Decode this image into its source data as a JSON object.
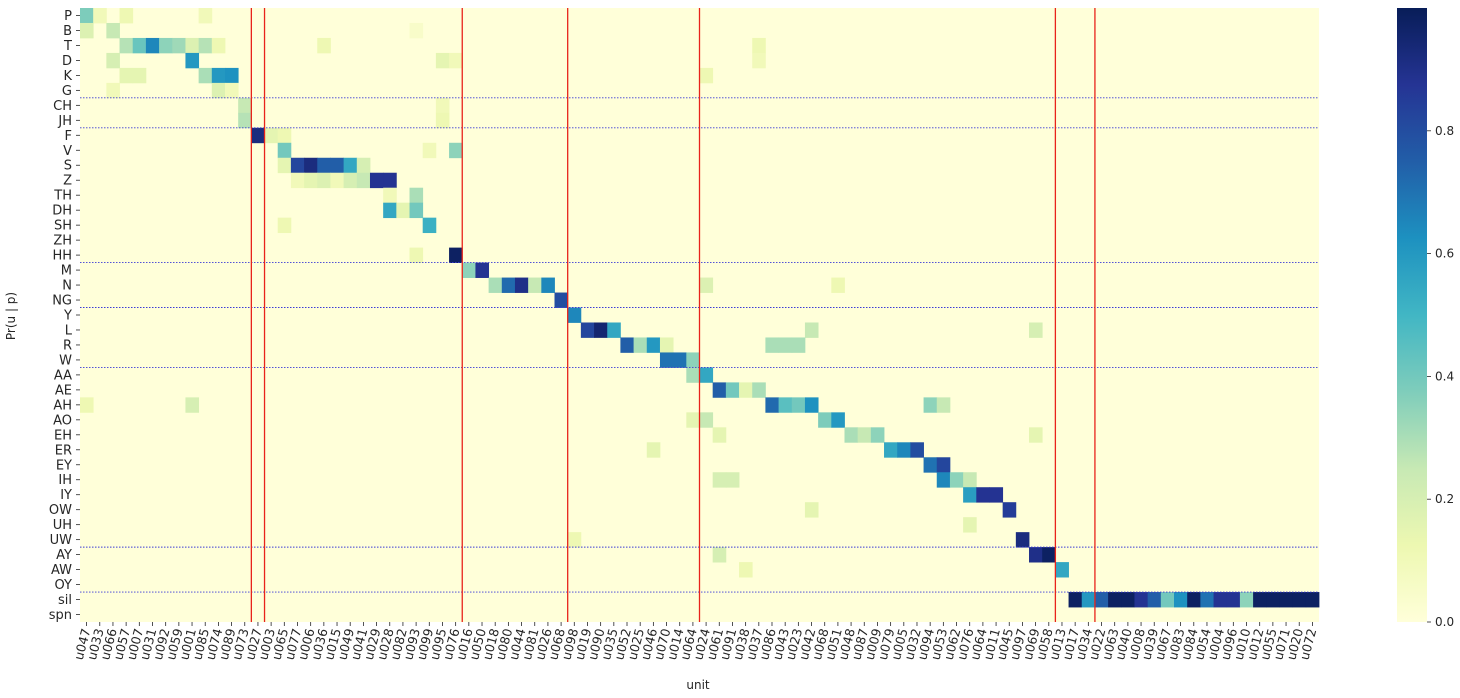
{
  "chart_data": {
    "type": "heatmap",
    "ylabel": "Pr(u | p)",
    "xlabel": "unit",
    "rows": [
      "P",
      "B",
      "T",
      "D",
      "K",
      "G",
      "CH",
      "JH",
      "F",
      "V",
      "S",
      "Z",
      "TH",
      "DH",
      "SH",
      "ZH",
      "HH",
      "M",
      "N",
      "NG",
      "Y",
      "L",
      "R",
      "W",
      "AA",
      "AE",
      "AH",
      "AO",
      "EH",
      "ER",
      "EY",
      "IH",
      "IY",
      "OW",
      "UH",
      "UW",
      "AY",
      "AW",
      "OY",
      "sil",
      "spn"
    ],
    "columns": [
      "u047",
      "u033",
      "u066",
      "u057",
      "u007",
      "u031",
      "u092",
      "u059",
      "u001",
      "u085",
      "u074",
      "u089",
      "u073",
      "u027",
      "u003",
      "u065",
      "u077",
      "u006",
      "u036",
      "u015",
      "u049",
      "u041",
      "u029",
      "u028",
      "u082",
      "u093",
      "u099",
      "u095",
      "u076",
      "u016",
      "u050",
      "u018",
      "u080",
      "u044",
      "u081",
      "u026",
      "u068",
      "u098",
      "u019",
      "u090",
      "u035",
      "u052",
      "u025",
      "u046",
      "u070",
      "u014",
      "u064",
      "u024",
      "u061",
      "u091",
      "u038",
      "u037",
      "u086",
      "u043",
      "u023",
      "u042",
      "u068",
      "u051",
      "u048",
      "u087",
      "u009",
      "u079",
      "u005",
      "u032",
      "u094",
      "u053",
      "u062",
      "u076",
      "u064",
      "u011",
      "u045",
      "u097",
      "u069",
      "u058",
      "u013",
      "u017",
      "u034",
      "u022",
      "u063",
      "u040",
      "u008",
      "u039",
      "u067",
      "u083",
      "u084",
      "u054",
      "u004",
      "u096",
      "u010",
      "u012",
      "u055",
      "u071",
      "u020",
      "u072"
    ],
    "clim": [
      0.0,
      1.0
    ],
    "colorbar_ticks": [
      "0.0",
      "0.2",
      "0.4",
      "0.6",
      "0.8"
    ],
    "colormap": "YlGnBu",
    "group_boundaries_red_after_column": [
      12,
      13,
      28,
      36,
      46,
      73,
      76
    ],
    "group_boundaries_blue_after_row": [
      5,
      7,
      16,
      19,
      23,
      35,
      38
    ],
    "cells": [
      {
        "r": 0,
        "c": 0,
        "v": 0.38
      },
      {
        "r": 0,
        "c": 1,
        "v": 0.1
      },
      {
        "r": 0,
        "c": 3,
        "v": 0.12
      },
      {
        "r": 0,
        "c": 9,
        "v": 0.1
      },
      {
        "r": 1,
        "c": 0,
        "v": 0.18
      },
      {
        "r": 1,
        "c": 2,
        "v": 0.25
      },
      {
        "r": 1,
        "c": 25,
        "v": 0.05
      },
      {
        "r": 2,
        "c": 3,
        "v": 0.28
      },
      {
        "r": 2,
        "c": 4,
        "v": 0.42
      },
      {
        "r": 2,
        "c": 5,
        "v": 0.65
      },
      {
        "r": 2,
        "c": 6,
        "v": 0.35
      },
      {
        "r": 2,
        "c": 7,
        "v": 0.32
      },
      {
        "r": 2,
        "c": 8,
        "v": 0.18
      },
      {
        "r": 2,
        "c": 9,
        "v": 0.28
      },
      {
        "r": 2,
        "c": 10,
        "v": 0.12
      },
      {
        "r": 2,
        "c": 18,
        "v": 0.12
      },
      {
        "r": 2,
        "c": 51,
        "v": 0.12
      },
      {
        "r": 3,
        "c": 2,
        "v": 0.2
      },
      {
        "r": 3,
        "c": 8,
        "v": 0.6
      },
      {
        "r": 3,
        "c": 27,
        "v": 0.15
      },
      {
        "r": 3,
        "c": 28,
        "v": 0.1
      },
      {
        "r": 3,
        "c": 51,
        "v": 0.1
      },
      {
        "r": 4,
        "c": 3,
        "v": 0.15
      },
      {
        "r": 4,
        "c": 4,
        "v": 0.15
      },
      {
        "r": 4,
        "c": 9,
        "v": 0.3
      },
      {
        "r": 4,
        "c": 10,
        "v": 0.6
      },
      {
        "r": 4,
        "c": 11,
        "v": 0.62
      },
      {
        "r": 4,
        "c": 47,
        "v": 0.12
      },
      {
        "r": 5,
        "c": 2,
        "v": 0.1
      },
      {
        "r": 5,
        "c": 10,
        "v": 0.18
      },
      {
        "r": 5,
        "c": 11,
        "v": 0.1
      },
      {
        "r": 6,
        "c": 12,
        "v": 0.25
      },
      {
        "r": 6,
        "c": 27,
        "v": 0.1
      },
      {
        "r": 7,
        "c": 12,
        "v": 0.28
      },
      {
        "r": 7,
        "c": 27,
        "v": 0.12
      },
      {
        "r": 8,
        "c": 13,
        "v": 0.92
      },
      {
        "r": 8,
        "c": 14,
        "v": 0.15
      },
      {
        "r": 8,
        "c": 15,
        "v": 0.12
      },
      {
        "r": 9,
        "c": 15,
        "v": 0.4
      },
      {
        "r": 9,
        "c": 28,
        "v": 0.35
      },
      {
        "r": 9,
        "c": 26,
        "v": 0.1
      },
      {
        "r": 10,
        "c": 15,
        "v": 0.15
      },
      {
        "r": 10,
        "c": 16,
        "v": 0.82
      },
      {
        "r": 10,
        "c": 17,
        "v": 0.92
      },
      {
        "r": 10,
        "c": 18,
        "v": 0.75
      },
      {
        "r": 10,
        "c": 19,
        "v": 0.75
      },
      {
        "r": 10,
        "c": 20,
        "v": 0.55
      },
      {
        "r": 10,
        "c": 21,
        "v": 0.2
      },
      {
        "r": 11,
        "c": 16,
        "v": 0.1
      },
      {
        "r": 11,
        "c": 17,
        "v": 0.15
      },
      {
        "r": 11,
        "c": 18,
        "v": 0.18
      },
      {
        "r": 11,
        "c": 19,
        "v": 0.1
      },
      {
        "r": 11,
        "c": 20,
        "v": 0.2
      },
      {
        "r": 11,
        "c": 21,
        "v": 0.25
      },
      {
        "r": 11,
        "c": 22,
        "v": 0.88
      },
      {
        "r": 11,
        "c": 23,
        "v": 0.88
      },
      {
        "r": 12,
        "c": 25,
        "v": 0.3
      },
      {
        "r": 12,
        "c": 23,
        "v": 0.1
      },
      {
        "r": 13,
        "c": 23,
        "v": 0.55
      },
      {
        "r": 13,
        "c": 24,
        "v": 0.15
      },
      {
        "r": 13,
        "c": 25,
        "v": 0.4
      },
      {
        "r": 14,
        "c": 26,
        "v": 0.52
      },
      {
        "r": 14,
        "c": 15,
        "v": 0.12
      },
      {
        "r": 16,
        "c": 28,
        "v": 0.98
      },
      {
        "r": 16,
        "c": 25,
        "v": 0.12
      },
      {
        "r": 17,
        "c": 29,
        "v": 0.35
      },
      {
        "r": 17,
        "c": 30,
        "v": 0.88
      },
      {
        "r": 18,
        "c": 31,
        "v": 0.3
      },
      {
        "r": 18,
        "c": 32,
        "v": 0.72
      },
      {
        "r": 18,
        "c": 33,
        "v": 0.9
      },
      {
        "r": 18,
        "c": 34,
        "v": 0.25
      },
      {
        "r": 18,
        "c": 35,
        "v": 0.65
      },
      {
        "r": 18,
        "c": 47,
        "v": 0.18
      },
      {
        "r": 18,
        "c": 57,
        "v": 0.12
      },
      {
        "r": 19,
        "c": 36,
        "v": 0.8
      },
      {
        "r": 20,
        "c": 37,
        "v": 0.65
      },
      {
        "r": 21,
        "c": 38,
        "v": 0.82
      },
      {
        "r": 21,
        "c": 39,
        "v": 0.95
      },
      {
        "r": 21,
        "c": 40,
        "v": 0.55
      },
      {
        "r": 21,
        "c": 55,
        "v": 0.25
      },
      {
        "r": 21,
        "c": 72,
        "v": 0.2
      },
      {
        "r": 22,
        "c": 41,
        "v": 0.75
      },
      {
        "r": 22,
        "c": 42,
        "v": 0.3
      },
      {
        "r": 22,
        "c": 43,
        "v": 0.6
      },
      {
        "r": 22,
        "c": 44,
        "v": 0.15
      },
      {
        "r": 22,
        "c": 52,
        "v": 0.3
      },
      {
        "r": 22,
        "c": 53,
        "v": 0.3
      },
      {
        "r": 22,
        "c": 54,
        "v": 0.3
      },
      {
        "r": 23,
        "c": 44,
        "v": 0.7
      },
      {
        "r": 23,
        "c": 45,
        "v": 0.7
      },
      {
        "r": 23,
        "c": 46,
        "v": 0.35
      },
      {
        "r": 24,
        "c": 46,
        "v": 0.3
      },
      {
        "r": 24,
        "c": 47,
        "v": 0.55
      },
      {
        "r": 25,
        "c": 48,
        "v": 0.75
      },
      {
        "r": 25,
        "c": 49,
        "v": 0.4
      },
      {
        "r": 25,
        "c": 50,
        "v": 0.15
      },
      {
        "r": 25,
        "c": 51,
        "v": 0.3
      },
      {
        "r": 26,
        "c": 52,
        "v": 0.72
      },
      {
        "r": 26,
        "c": 53,
        "v": 0.45
      },
      {
        "r": 26,
        "c": 54,
        "v": 0.4
      },
      {
        "r": 26,
        "c": 55,
        "v": 0.62
      },
      {
        "r": 26,
        "c": 64,
        "v": 0.35
      },
      {
        "r": 26,
        "c": 65,
        "v": 0.25
      },
      {
        "r": 26,
        "c": 0,
        "v": 0.12
      },
      {
        "r": 26,
        "c": 8,
        "v": 0.2
      },
      {
        "r": 27,
        "c": 46,
        "v": 0.15
      },
      {
        "r": 27,
        "c": 47,
        "v": 0.25
      },
      {
        "r": 27,
        "c": 56,
        "v": 0.38
      },
      {
        "r": 27,
        "c": 57,
        "v": 0.6
      },
      {
        "r": 28,
        "c": 48,
        "v": 0.15
      },
      {
        "r": 28,
        "c": 58,
        "v": 0.3
      },
      {
        "r": 28,
        "c": 59,
        "v": 0.25
      },
      {
        "r": 28,
        "c": 60,
        "v": 0.35
      },
      {
        "r": 28,
        "c": 72,
        "v": 0.15
      },
      {
        "r": 29,
        "c": 61,
        "v": 0.55
      },
      {
        "r": 29,
        "c": 62,
        "v": 0.65
      },
      {
        "r": 29,
        "c": 63,
        "v": 0.8
      },
      {
        "r": 29,
        "c": 43,
        "v": 0.15
      },
      {
        "r": 30,
        "c": 64,
        "v": 0.7
      },
      {
        "r": 30,
        "c": 65,
        "v": 0.82
      },
      {
        "r": 31,
        "c": 65,
        "v": 0.65
      },
      {
        "r": 31,
        "c": 66,
        "v": 0.35
      },
      {
        "r": 31,
        "c": 67,
        "v": 0.25
      },
      {
        "r": 31,
        "c": 48,
        "v": 0.2
      },
      {
        "r": 31,
        "c": 49,
        "v": 0.2
      },
      {
        "r": 32,
        "c": 67,
        "v": 0.58
      },
      {
        "r": 32,
        "c": 68,
        "v": 0.88
      },
      {
        "r": 32,
        "c": 69,
        "v": 0.88
      },
      {
        "r": 33,
        "c": 70,
        "v": 0.85
      },
      {
        "r": 33,
        "c": 55,
        "v": 0.15
      },
      {
        "r": 34,
        "c": 67,
        "v": 0.15
      },
      {
        "r": 35,
        "c": 71,
        "v": 0.92
      },
      {
        "r": 35,
        "c": 37,
        "v": 0.12
      },
      {
        "r": 36,
        "c": 72,
        "v": 0.9
      },
      {
        "r": 36,
        "c": 73,
        "v": 0.98
      },
      {
        "r": 36,
        "c": 48,
        "v": 0.2
      },
      {
        "r": 37,
        "c": 74,
        "v": 0.55
      },
      {
        "r": 37,
        "c": 50,
        "v": 0.12
      },
      {
        "r": 39,
        "c": 75,
        "v": 0.98
      },
      {
        "r": 39,
        "c": 76,
        "v": 0.6
      },
      {
        "r": 39,
        "c": 77,
        "v": 0.75
      },
      {
        "r": 39,
        "c": 78,
        "v": 0.98
      },
      {
        "r": 39,
        "c": 79,
        "v": 0.98
      },
      {
        "r": 39,
        "c": 80,
        "v": 0.88
      },
      {
        "r": 39,
        "c": 81,
        "v": 0.75
      },
      {
        "r": 39,
        "c": 82,
        "v": 0.4
      },
      {
        "r": 39,
        "c": 83,
        "v": 0.62
      },
      {
        "r": 39,
        "c": 84,
        "v": 0.98
      },
      {
        "r": 39,
        "c": 85,
        "v": 0.7
      },
      {
        "r": 39,
        "c": 86,
        "v": 0.88
      },
      {
        "r": 39,
        "c": 87,
        "v": 0.88
      },
      {
        "r": 39,
        "c": 88,
        "v": 0.35
      },
      {
        "r": 39,
        "c": 89,
        "v": 0.98
      },
      {
        "r": 39,
        "c": 90,
        "v": 0.98
      },
      {
        "r": 39,
        "c": 91,
        "v": 0.98
      },
      {
        "r": 39,
        "c": 92,
        "v": 0.98
      },
      {
        "r": 39,
        "c": 93,
        "v": 0.98
      }
    ]
  }
}
